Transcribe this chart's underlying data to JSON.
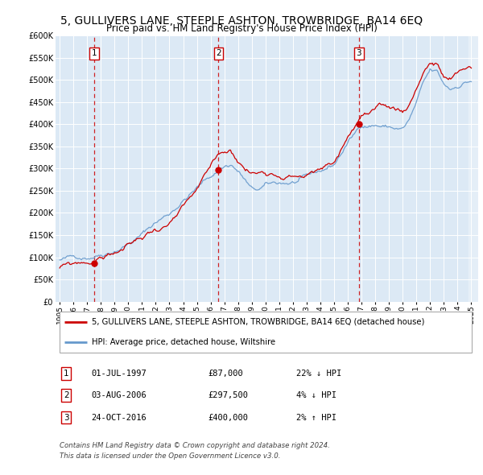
{
  "title": "5, GULLIVERS LANE, STEEPLE ASHTON, TROWBRIDGE, BA14 6EQ",
  "subtitle": "Price paid vs. HM Land Registry's House Price Index (HPI)",
  "title_fontsize": 10,
  "subtitle_fontsize": 8.5,
  "plot_bg_color": "#dce9f5",
  "fig_bg_color": "#ffffff",
  "ylim": [
    0,
    600000
  ],
  "yticks": [
    0,
    50000,
    100000,
    150000,
    200000,
    250000,
    300000,
    350000,
    400000,
    450000,
    500000,
    550000,
    600000
  ],
  "sale_dates": [
    1997.5,
    2006.58,
    2016.81
  ],
  "sale_prices": [
    87000,
    297500,
    400000
  ],
  "sale_labels": [
    "1",
    "2",
    "3"
  ],
  "red_line_color": "#cc0000",
  "blue_line_color": "#6699cc",
  "marker_color": "#cc0000",
  "dashed_line_color": "#cc0000",
  "legend_label_red": "5, GULLIVERS LANE, STEEPLE ASHTON, TROWBRIDGE, BA14 6EQ (detached house)",
  "legend_label_blue": "HPI: Average price, detached house, Wiltshire",
  "table_rows": [
    {
      "num": "1",
      "date": "01-JUL-1997",
      "price": "£87,000",
      "change": "22% ↓ HPI"
    },
    {
      "num": "2",
      "date": "03-AUG-2006",
      "price": "£297,500",
      "change": "4% ↓ HPI"
    },
    {
      "num": "3",
      "date": "24-OCT-2016",
      "price": "£400,000",
      "change": "2% ↑ HPI"
    }
  ],
  "footer": "Contains HM Land Registry data © Crown copyright and database right 2024.\nThis data is licensed under the Open Government Licence v3.0."
}
